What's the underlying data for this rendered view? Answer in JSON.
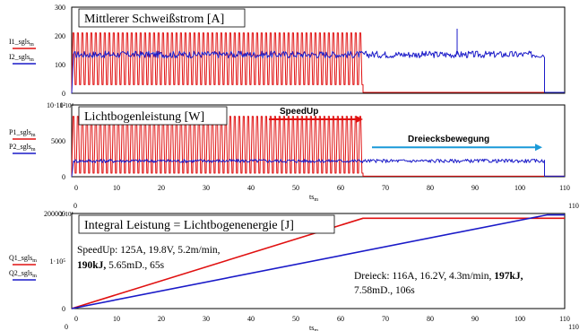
{
  "colors": {
    "red": "#e01010",
    "blue": "#1a1ac8",
    "frame": "#000000"
  },
  "chart_data": [
    {
      "type": "line",
      "title": "Mittlerer Schweißstrom [A]",
      "legend": [
        "I1_sgls",
        "I2_sgls"
      ],
      "legend_sub": "m",
      "ylim": [
        0,
        300
      ],
      "yticks": [
        {
          "v": 0,
          "label": "0"
        },
        {
          "v": 100,
          "label": "100"
        },
        {
          "v": 200,
          "label": "200"
        },
        {
          "v": 300,
          "label": "300"
        }
      ],
      "xlim": [
        0,
        110
      ],
      "xticks": [
        0,
        10,
        20,
        30,
        40,
        50,
        60,
        70,
        80,
        90,
        100,
        110
      ],
      "xtick_labels": [
        "0",
        "10",
        "20",
        "30",
        "40",
        "50",
        "60",
        "70",
        "80",
        "90",
        "100",
        "110"
      ],
      "series": [
        {
          "name": "I1_sgls",
          "color": "#e01010",
          "kind": "osc",
          "t_end": 65,
          "low": 30,
          "high": 210,
          "period": 1.0,
          "tail": 3
        },
        {
          "name": "I2_sgls",
          "color": "#1a1ac8",
          "kind": "noise",
          "t_end": 105.5,
          "mean": 135,
          "amp": 12,
          "tail": 3
        }
      ],
      "spikes": [
        {
          "x": 86,
          "y": 225
        }
      ]
    },
    {
      "type": "line",
      "title": "Lichtbogenleistung [W]",
      "legend": [
        "P1_sgls",
        "P2_sgls"
      ],
      "legend_sub": "m",
      "ylim": [
        0,
        10000
      ],
      "yticks": [
        {
          "v": 0,
          "label": "0"
        },
        {
          "v": 5000,
          "label": "5000"
        },
        {
          "v": 10000,
          "label": "10·10³"
        }
      ],
      "y_top_label": "1·10⁴",
      "xlim": [
        0,
        110
      ],
      "xticks": [
        0,
        10,
        20,
        30,
        40,
        50,
        60,
        70,
        80,
        90,
        100,
        110
      ],
      "xtick_labels": [
        "0",
        "10",
        "20",
        "30",
        "40",
        "50",
        "60",
        "70",
        "80",
        "90",
        "100",
        "110"
      ],
      "x_first_label": "0",
      "xlabel": "ts",
      "xlabel_sub": "m",
      "series": [
        {
          "name": "P1_sgls",
          "color": "#e01010",
          "kind": "osc",
          "t_end": 65,
          "low": 500,
          "high": 8400,
          "period": 1.0,
          "tail": 80
        },
        {
          "name": "P2_sgls",
          "color": "#1a1ac8",
          "kind": "noise",
          "t_end": 105.5,
          "mean": 2200,
          "amp": 250,
          "tail": 80
        }
      ],
      "annotations": [
        {
          "text": "SpeedUp",
          "color": "#e01010",
          "from": 44,
          "to": 65,
          "y": 8000
        },
        {
          "text": "Dreiecksbewegung",
          "color": "#1a9ad8",
          "from": 67,
          "to": 105,
          "y": 4100
        }
      ]
    },
    {
      "type": "line",
      "title": "Integral Leistung = Lichtbogenenergie [J]",
      "legend": [
        "Q1_sgls",
        "Q2_sgls"
      ],
      "legend_sub": "m",
      "ylim": [
        0,
        200000
      ],
      "yticks": [
        {
          "v": 0,
          "label": "0"
        },
        {
          "v": 100000,
          "label": "1·10⁵"
        },
        {
          "v": 200000,
          "label": "200000"
        }
      ],
      "y_top_label": "2·10⁵",
      "xlim": [
        0,
        110
      ],
      "xticks": [
        0,
        10,
        20,
        30,
        40,
        50,
        60,
        70,
        80,
        90,
        100,
        110
      ],
      "xtick_labels": [
        "0",
        "10",
        "20",
        "30",
        "40",
        "50",
        "60",
        "70",
        "80",
        "90",
        "100",
        "110"
      ],
      "x_first_label": "0",
      "x_last_label": "110",
      "xlabel": "ts",
      "xlabel_sub": "m",
      "series": [
        {
          "name": "Q1_sgls",
          "color": "#e01010",
          "kind": "points",
          "x": [
            0,
            65,
            110
          ],
          "y": [
            0,
            190000,
            190000
          ]
        },
        {
          "name": "Q2_sgls",
          "color": "#1a1ac8",
          "kind": "points",
          "x": [
            0,
            106,
            110
          ],
          "y": [
            0,
            197000,
            197000
          ]
        }
      ],
      "notes": [
        {
          "pre": "SpeedUp: 125A, 19.8V, 5.2m/min,",
          "bold": "",
          "post": ""
        },
        {
          "pre": "",
          "bold": "190kJ,",
          "post": " 5.65mD., 65s"
        },
        {
          "pre": "Dreieck: 116A, 16.2V, 4.3m/min, ",
          "bold": "197kJ,",
          "post": ""
        },
        {
          "pre": "7.58mD., 106s",
          "bold": "",
          "post": ""
        }
      ]
    }
  ]
}
